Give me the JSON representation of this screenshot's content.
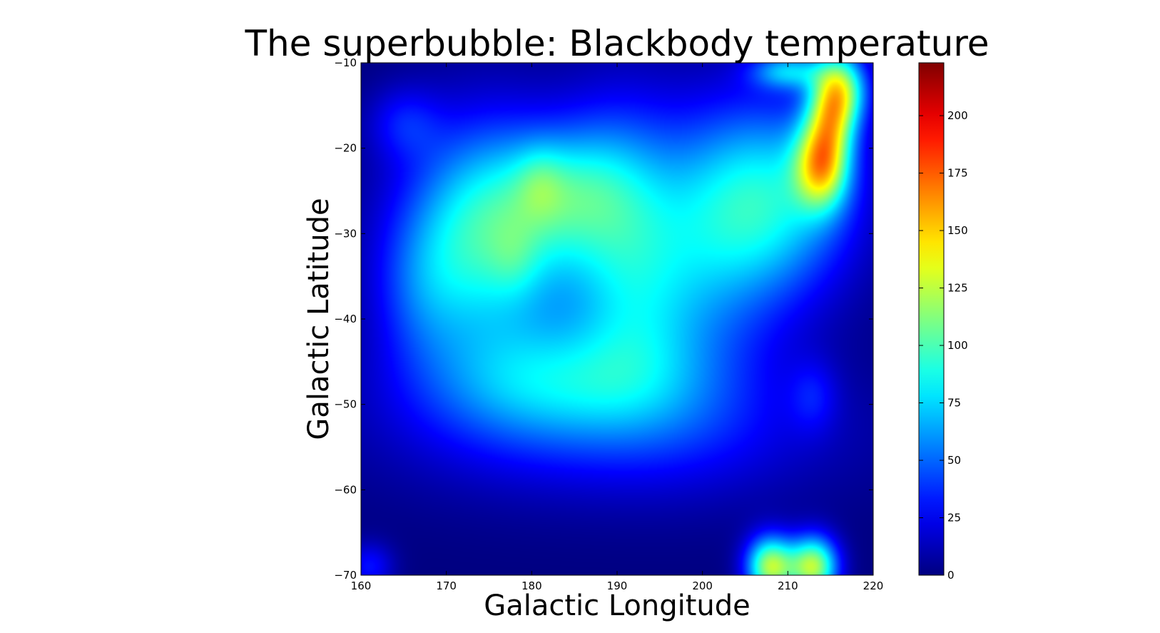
{
  "chart_data": {
    "type": "heatmap",
    "title": "The superbubble: Blackbody temperature",
    "xlabel": "Galactic Longitude",
    "ylabel": "Galactic Latitude",
    "xlim": [
      160,
      220
    ],
    "ylim": [
      -70,
      -10
    ],
    "x_ticks": [
      160,
      170,
      180,
      190,
      200,
      210,
      220
    ],
    "x_tick_labels": [
      "160",
      "170",
      "180",
      "190",
      "200",
      "210",
      "220"
    ],
    "y_ticks": [
      -10,
      -20,
      -30,
      -40,
      -50,
      -60,
      -70
    ],
    "y_tick_labels": [
      "−10",
      "−20",
      "−30",
      "−40",
      "−50",
      "−60",
      "−70"
    ],
    "colormap": "jet",
    "colorbar": {
      "range": [
        0,
        223
      ],
      "ticks": [
        0,
        25,
        50,
        75,
        100,
        125,
        150,
        175,
        200
      ],
      "tick_labels": [
        "0",
        "25",
        "50",
        "75",
        "100",
        "125",
        "150",
        "175",
        "200"
      ]
    },
    "blobs": [
      {
        "lon": 175,
        "lat": -30,
        "slon": 7,
        "slat": 9,
        "value": 95
      },
      {
        "lon": 184,
        "lat": -25,
        "slon": 5,
        "slat": 5,
        "value": 40
      },
      {
        "lon": 181,
        "lat": -24,
        "slon": 2,
        "slat": 3,
        "value": 18
      },
      {
        "lon": 178,
        "lat": -33,
        "slon": 2,
        "slat": 3,
        "value": 12
      },
      {
        "lon": 167,
        "lat": -37,
        "slon": 4,
        "slat": 6,
        "value": 25
      },
      {
        "lon": 190,
        "lat": -27,
        "slon": 5,
        "slat": 9,
        "value": 50
      },
      {
        "lon": 183,
        "lat": -47,
        "slon": 11,
        "slat": 5,
        "value": 55
      },
      {
        "lon": 192,
        "lat": -40,
        "slon": 5,
        "slat": 7,
        "value": 25
      },
      {
        "lon": 199,
        "lat": -33,
        "slon": 7,
        "slat": 11,
        "value": 45
      },
      {
        "lon": 208,
        "lat": -26,
        "slon": 7,
        "slat": 8,
        "value": 75
      },
      {
        "lon": 214,
        "lat": -22,
        "slon": 2.2,
        "slat": 3.5,
        "value": 110
      },
      {
        "lon": 216,
        "lat": -13,
        "slon": 2.2,
        "slat": 3,
        "value": 110
      },
      {
        "lon": 215,
        "lat": -17,
        "slon": 2,
        "slat": 3,
        "value": 65
      },
      {
        "lon": 210,
        "lat": -11,
        "slon": 3,
        "slat": 1.5,
        "value": 60
      },
      {
        "lon": 190,
        "lat": -53,
        "slon": 18,
        "slat": 6,
        "value": 30
      },
      {
        "lon": 165,
        "lat": -17,
        "slon": 3,
        "slat": 3,
        "value": 25
      },
      {
        "lon": 208,
        "lat": -69,
        "slon": 2,
        "slat": 2.5,
        "value": 120
      },
      {
        "lon": 213,
        "lat": -69,
        "slon": 2,
        "slat": 2.5,
        "value": 120
      },
      {
        "lon": 161,
        "lat": -69,
        "slon": 2,
        "slat": 2,
        "value": 30
      },
      {
        "lon": 213,
        "lat": -49,
        "slon": 2,
        "slat": 3,
        "value": 20
      }
    ]
  }
}
